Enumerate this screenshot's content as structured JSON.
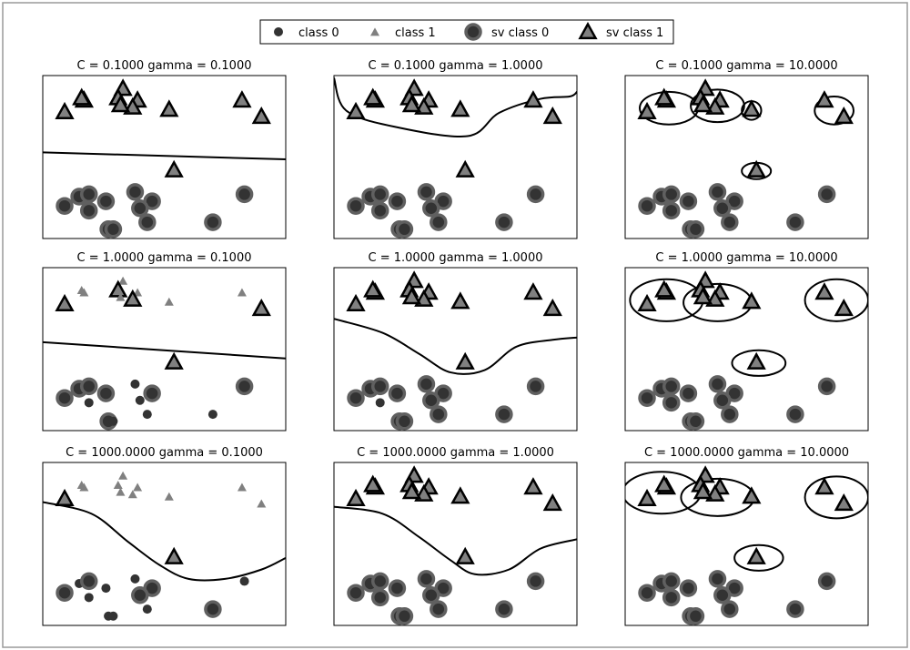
{
  "legend": {
    "placement": "top-center",
    "items": [
      {
        "label": "class 0",
        "marker": "circle",
        "sv": false
      },
      {
        "label": "class 1",
        "marker": "triangle",
        "sv": false
      },
      {
        "label": "sv class 0",
        "marker": "circle",
        "sv": true
      },
      {
        "label": "sv class 1",
        "marker": "triangle",
        "sv": true
      }
    ]
  },
  "colors": {
    "class0": "#333333",
    "class1": "#808080",
    "sv_edge": "#606060",
    "boundary": "#000000"
  },
  "chart_data": {
    "type": "scatter",
    "grid": false,
    "xlim": [
      0,
      10
    ],
    "ylim": [
      0,
      7
    ],
    "points": {
      "class0": [
        [
          2.6,
          1.6
        ],
        [
          3.8,
          2.0
        ],
        [
          1.5,
          1.8
        ],
        [
          1.9,
          1.9
        ],
        [
          4.5,
          1.6
        ],
        [
          2.7,
          0.4
        ],
        [
          1.9,
          1.2
        ],
        [
          0.9,
          1.4
        ],
        [
          8.3,
          1.9
        ],
        [
          4.0,
          1.3
        ],
        [
          4.3,
          0.7
        ],
        [
          7.0,
          0.7
        ],
        [
          2.9,
          0.4
        ]
      ],
      "class1": [
        [
          0.9,
          5.4
        ],
        [
          1.7,
          5.9
        ],
        [
          3.3,
          6.4
        ],
        [
          3.9,
          5.9
        ],
        [
          3.1,
          6.0
        ],
        [
          3.7,
          5.6
        ],
        [
          5.2,
          5.5
        ],
        [
          3.2,
          5.7
        ],
        [
          8.2,
          5.9
        ],
        [
          9.0,
          5.2
        ],
        [
          5.4,
          2.9
        ],
        [
          1.6,
          6.0
        ]
      ]
    },
    "panels": [
      {
        "title": "C = 0.1000 gamma = 0.1000",
        "sv0": [
          0,
          1,
          2,
          3,
          4,
          5,
          6,
          7,
          8,
          9,
          10,
          11,
          12
        ],
        "sv1": [
          0,
          1,
          2,
          3,
          4,
          5,
          6,
          7,
          8,
          9,
          10,
          11
        ]
      },
      {
        "title": "C = 0.1000 gamma = 1.0000",
        "sv0": [
          0,
          1,
          2,
          3,
          4,
          5,
          6,
          7,
          8,
          9,
          10,
          11,
          12
        ],
        "sv1": [
          0,
          1,
          2,
          3,
          4,
          5,
          6,
          7,
          8,
          9,
          10,
          11
        ]
      },
      {
        "title": "C = 0.1000 gamma = 10.0000",
        "sv0": [
          0,
          1,
          2,
          3,
          4,
          5,
          6,
          7,
          8,
          9,
          10,
          11,
          12
        ],
        "sv1": [
          0,
          1,
          2,
          3,
          4,
          5,
          6,
          7,
          8,
          9,
          10,
          11
        ]
      },
      {
        "title": "C = 1.0000 gamma = 0.1000",
        "sv0": [
          0,
          2,
          3,
          4,
          5,
          7,
          8
        ],
        "sv1": [
          0,
          4,
          5,
          9,
          10
        ]
      },
      {
        "title": "C = 1.0000 gamma = 1.0000",
        "sv0": [
          0,
          1,
          2,
          3,
          4,
          5,
          7,
          8,
          9,
          10,
          11,
          12
        ],
        "sv1": [
          0,
          1,
          2,
          3,
          4,
          5,
          6,
          7,
          8,
          9,
          10,
          11
        ]
      },
      {
        "title": "C = 1.0000 gamma = 10.0000",
        "sv0": [
          0,
          1,
          2,
          3,
          4,
          5,
          6,
          7,
          8,
          9,
          10,
          11,
          12
        ],
        "sv1": [
          0,
          1,
          2,
          3,
          4,
          5,
          6,
          7,
          8,
          9,
          10,
          11
        ]
      },
      {
        "title": "C = 1000.0000 gamma = 0.1000",
        "sv0": [
          3,
          4,
          7,
          9,
          11
        ],
        "sv1": [
          0,
          10
        ]
      },
      {
        "title": "C = 1000.0000 gamma = 1.0000",
        "sv0": [
          0,
          1,
          2,
          3,
          4,
          5,
          6,
          7,
          8,
          9,
          10,
          11,
          12
        ],
        "sv1": [
          0,
          1,
          2,
          3,
          4,
          5,
          6,
          7,
          8,
          9,
          10,
          11
        ]
      },
      {
        "title": "C = 1000.0000 gamma = 10.0000",
        "sv0": [
          0,
          1,
          2,
          3,
          4,
          5,
          6,
          7,
          8,
          9,
          10,
          11,
          12
        ],
        "sv1": [
          0,
          1,
          2,
          3,
          4,
          5,
          6,
          7,
          8,
          9,
          10,
          11
        ]
      }
    ],
    "boundaries": [
      {
        "panel": 0,
        "kind": "line",
        "points": [
          [
            0,
            3.7
          ],
          [
            10,
            3.4
          ]
        ]
      },
      {
        "panel": 1,
        "kind": "curve",
        "points": [
          [
            0,
            6.9
          ],
          [
            0.5,
            5.5
          ],
          [
            2.5,
            4.8
          ],
          [
            5.5,
            4.4
          ],
          [
            6.8,
            5.4
          ],
          [
            8.5,
            6.0
          ],
          [
            9.7,
            6.1
          ],
          [
            10,
            6.3
          ]
        ]
      },
      {
        "panel": 2,
        "kind": "ellipse",
        "cx": 1.8,
        "cy": 5.6,
        "rx": 1.2,
        "ry": 0.7
      },
      {
        "panel": 2,
        "kind": "ellipse",
        "cx": 3.8,
        "cy": 5.7,
        "rx": 1.1,
        "ry": 0.7
      },
      {
        "panel": 2,
        "kind": "ellipse",
        "cx": 5.2,
        "cy": 5.5,
        "rx": 0.4,
        "ry": 0.4
      },
      {
        "panel": 2,
        "kind": "ellipse",
        "cx": 8.6,
        "cy": 5.5,
        "rx": 0.8,
        "ry": 0.6
      },
      {
        "panel": 2,
        "kind": "ellipse",
        "cx": 5.4,
        "cy": 2.9,
        "rx": 0.6,
        "ry": 0.35
      },
      {
        "panel": 3,
        "kind": "line",
        "points": [
          [
            0,
            3.8
          ],
          [
            10,
            3.1
          ]
        ]
      },
      {
        "panel": 4,
        "kind": "curve",
        "points": [
          [
            0,
            4.8
          ],
          [
            2,
            4.2
          ],
          [
            3.5,
            3.3
          ],
          [
            4.8,
            2.5
          ],
          [
            6.2,
            2.6
          ],
          [
            7.5,
            3.6
          ],
          [
            9.0,
            3.9
          ],
          [
            10,
            4.0
          ]
        ]
      },
      {
        "panel": 5,
        "kind": "ellipse",
        "cx": 1.7,
        "cy": 5.6,
        "rx": 1.5,
        "ry": 0.9
      },
      {
        "panel": 5,
        "kind": "ellipse",
        "cx": 3.8,
        "cy": 5.5,
        "rx": 1.4,
        "ry": 0.8
      },
      {
        "panel": 5,
        "kind": "ellipse",
        "cx": 8.7,
        "cy": 5.6,
        "rx": 1.3,
        "ry": 0.9
      },
      {
        "panel": 5,
        "kind": "ellipse",
        "cx": 5.5,
        "cy": 2.9,
        "rx": 1.1,
        "ry": 0.55
      },
      {
        "panel": 6,
        "kind": "curve",
        "points": [
          [
            0,
            5.3
          ],
          [
            2,
            4.8
          ],
          [
            3.5,
            3.6
          ],
          [
            4.8,
            2.6
          ],
          [
            6.0,
            2.0
          ],
          [
            7.5,
            2.0
          ],
          [
            9.0,
            2.4
          ],
          [
            10,
            2.9
          ]
        ]
      },
      {
        "panel": 7,
        "kind": "curve",
        "points": [
          [
            0,
            5.1
          ],
          [
            2,
            4.8
          ],
          [
            3.5,
            3.8
          ],
          [
            4.8,
            2.8
          ],
          [
            5.8,
            2.2
          ],
          [
            7.2,
            2.4
          ],
          [
            8.5,
            3.3
          ],
          [
            10,
            3.7
          ]
        ]
      },
      {
        "panel": 8,
        "kind": "ellipse",
        "cx": 1.5,
        "cy": 5.7,
        "rx": 1.6,
        "ry": 0.9
      },
      {
        "panel": 8,
        "kind": "ellipse",
        "cx": 3.8,
        "cy": 5.5,
        "rx": 1.5,
        "ry": 0.8
      },
      {
        "panel": 8,
        "kind": "ellipse",
        "cx": 8.7,
        "cy": 5.5,
        "rx": 1.3,
        "ry": 0.9
      },
      {
        "panel": 8,
        "kind": "ellipse",
        "cx": 5.5,
        "cy": 2.9,
        "rx": 1.0,
        "ry": 0.55
      }
    ]
  }
}
